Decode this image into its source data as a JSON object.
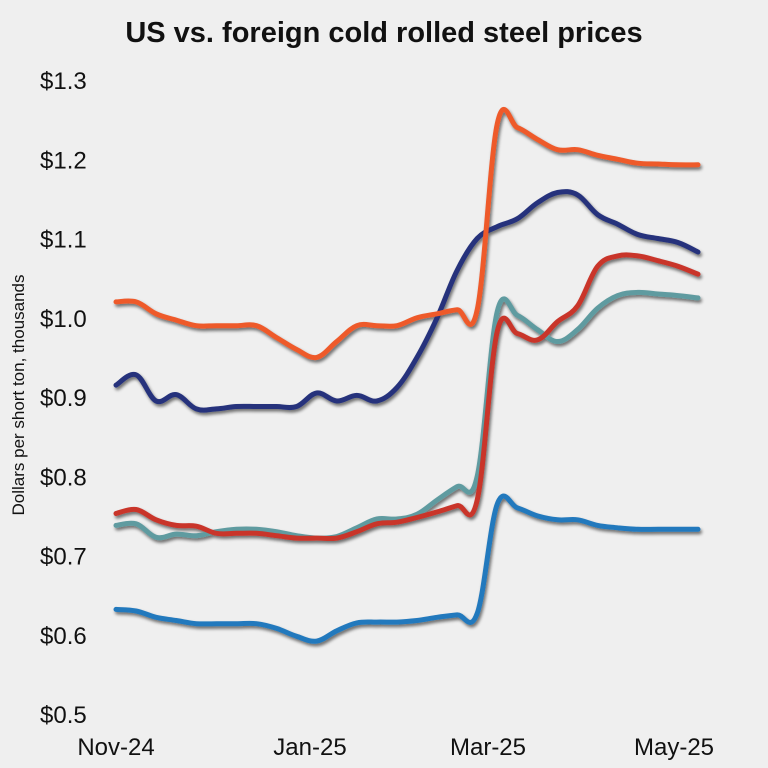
{
  "chart_data": {
    "type": "line",
    "title": "US vs. foreign cold rolled steel prices",
    "xlabel": "",
    "ylabel": "Dollars per short ton, thousands",
    "ylim": [
      0.5,
      1.3
    ],
    "y_ticks": [
      {
        "value": 1.3,
        "label": "$1.3"
      },
      {
        "value": 1.2,
        "label": "$1.2"
      },
      {
        "value": 1.1,
        "label": "$1.1"
      },
      {
        "value": 1.0,
        "label": "$1.0"
      },
      {
        "value": 0.9,
        "label": "$0.9"
      },
      {
        "value": 0.8,
        "label": "$0.8"
      },
      {
        "value": 0.7,
        "label": "$0.7"
      },
      {
        "value": 0.6,
        "label": "$0.6"
      },
      {
        "value": 0.5,
        "label": "$0.5"
      }
    ],
    "x_ticks": [
      "Nov-24",
      "Jan-25",
      "Mar-25",
      "May-25"
    ],
    "x": [
      "2024-11-01",
      "2024-11-08",
      "2024-11-15",
      "2024-11-22",
      "2024-11-29",
      "2024-12-06",
      "2024-12-13",
      "2024-12-20",
      "2024-12-27",
      "2025-01-03",
      "2025-01-10",
      "2025-01-17",
      "2025-01-24",
      "2025-01-31",
      "2025-02-07",
      "2025-02-14",
      "2025-02-21",
      "2025-02-28",
      "2025-03-07",
      "2025-03-14",
      "2025-03-21",
      "2025-03-28",
      "2025-04-04",
      "2025-04-11",
      "2025-04-18",
      "2025-04-25",
      "2025-05-02",
      "2025-05-09",
      "2025-05-16",
      "2025-05-23"
    ],
    "series": [
      {
        "color": "#ee5a2c",
        "values": [
          1.02,
          1.02,
          1.005,
          0.997,
          0.99,
          0.99,
          0.99,
          0.99,
          0.975,
          0.96,
          0.95,
          0.97,
          0.99,
          0.99,
          0.99,
          1.0,
          1.005,
          1.01,
          1.01,
          1.245,
          1.24,
          1.225,
          1.212,
          1.212,
          1.205,
          1.2,
          1.195,
          1.194,
          1.193,
          1.193
        ]
      },
      {
        "color": "#25337c",
        "values": [
          0.915,
          0.928,
          0.895,
          0.903,
          0.885,
          0.885,
          0.888,
          0.888,
          0.888,
          0.888,
          0.905,
          0.895,
          0.902,
          0.895,
          0.912,
          0.95,
          1.0,
          1.06,
          1.1,
          1.115,
          1.125,
          1.145,
          1.158,
          1.155,
          1.13,
          1.118,
          1.105,
          1.1,
          1.095,
          1.083
        ]
      },
      {
        "color": "#c9352b",
        "values": [
          0.753,
          0.758,
          0.745,
          0.738,
          0.737,
          0.728,
          0.728,
          0.728,
          0.725,
          0.722,
          0.722,
          0.722,
          0.73,
          0.74,
          0.742,
          0.748,
          0.755,
          0.763,
          0.77,
          0.983,
          0.98,
          0.972,
          0.995,
          1.015,
          1.065,
          1.078,
          1.078,
          1.072,
          1.065,
          1.055
        ]
      },
      {
        "color": "#5f9ba0",
        "values": [
          0.738,
          0.74,
          0.723,
          0.727,
          0.725,
          0.73,
          0.733,
          0.733,
          0.73,
          0.725,
          0.722,
          0.724,
          0.735,
          0.746,
          0.746,
          0.752,
          0.77,
          0.787,
          0.8,
          1.008,
          1.003,
          0.985,
          0.97,
          0.985,
          1.012,
          1.028,
          1.032,
          1.03,
          1.028,
          1.025
        ]
      },
      {
        "color": "#2379bd",
        "values": [
          0.632,
          0.63,
          0.622,
          0.618,
          0.614,
          0.614,
          0.614,
          0.614,
          0.608,
          0.598,
          0.592,
          0.605,
          0.615,
          0.616,
          0.616,
          0.618,
          0.622,
          0.625,
          0.627,
          0.765,
          0.76,
          0.75,
          0.745,
          0.745,
          0.738,
          0.735,
          0.733,
          0.733,
          0.733,
          0.733
        ]
      }
    ]
  }
}
